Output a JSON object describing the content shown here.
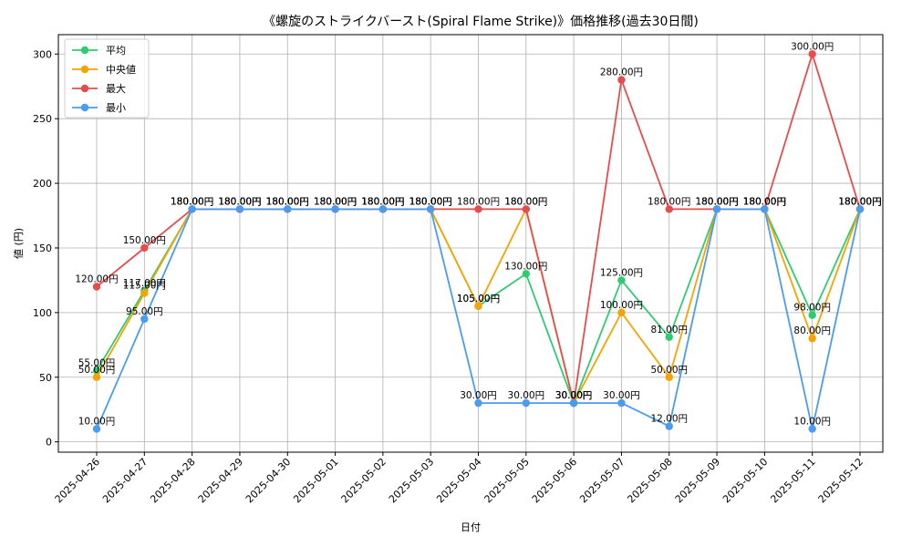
{
  "chart_data": {
    "type": "line",
    "title": "《螺旋のストライクバースト(Spiral Flame Strike)》価格推移(過去30日間)",
    "xlabel": "日付",
    "ylabel": "値 (円)",
    "ylim": [
      -8,
      315
    ],
    "yticks": [
      0,
      50,
      100,
      150,
      200,
      250,
      300
    ],
    "grid": true,
    "legend_position": "top-left",
    "value_suffix": "円",
    "categories": [
      "2025-04-26",
      "2025-04-27",
      "2025-04-28",
      "2025-04-29",
      "2025-04-30",
      "2025-05-01",
      "2025-05-02",
      "2025-05-03",
      "2025-05-04",
      "2025-05-05",
      "2025-05-06",
      "2025-05-07",
      "2025-05-08",
      "2025-05-09",
      "2025-05-10",
      "2025-05-11",
      "2025-05-12"
    ],
    "series": [
      {
        "name": "平均",
        "color": "#2ecc71",
        "values": [
          55,
          117,
          180,
          180,
          180,
          180,
          180,
          180,
          105,
          130,
          30,
          125,
          81,
          180,
          180,
          98,
          180
        ]
      },
      {
        "name": "中央値",
        "color": "#f5a300",
        "values": [
          50,
          115,
          180,
          180,
          180,
          180,
          180,
          180,
          105,
          180,
          30,
          100,
          50,
          180,
          180,
          80,
          180
        ]
      },
      {
        "name": "最大",
        "color": "#e74c4c",
        "values": [
          120,
          150,
          180,
          180,
          180,
          180,
          180,
          180,
          180,
          180,
          30,
          280,
          180,
          180,
          180,
          300,
          180
        ]
      },
      {
        "name": "最小",
        "color": "#4a9cf0",
        "values": [
          10,
          95,
          180,
          180,
          180,
          180,
          180,
          180,
          30,
          30,
          30,
          30,
          12,
          180,
          180,
          10,
          180
        ]
      }
    ]
  }
}
